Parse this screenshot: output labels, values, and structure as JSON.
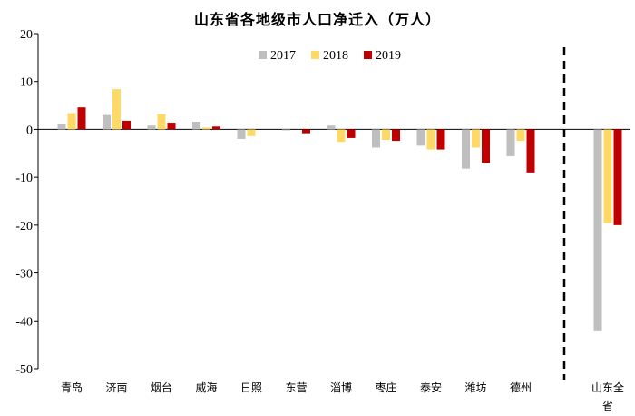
{
  "chart_data": {
    "type": "bar",
    "title": "山东省各地级市人口净迁入（万人）",
    "categories": [
      "青岛",
      "济南",
      "烟台",
      "威海",
      "日照",
      "东营",
      "淄博",
      "枣庄",
      "泰安",
      "潍坊",
      "德州"
    ],
    "series": [
      {
        "name": "2017",
        "color": "#BFBFBF",
        "values": [
          1.2,
          3.0,
          0.8,
          1.6,
          -2.0,
          -0.2,
          0.8,
          -3.8,
          -3.4,
          -8.2,
          -5.6
        ]
      },
      {
        "name": "2018",
        "color": "#FFD966",
        "values": [
          3.4,
          8.4,
          3.2,
          0.4,
          -1.4,
          0.0,
          -2.6,
          -2.2,
          -4.2,
          -3.8,
          -2.4
        ]
      },
      {
        "name": "2019",
        "color": "#C00000",
        "values": [
          4.6,
          1.8,
          1.4,
          0.6,
          0.0,
          -0.8,
          -1.8,
          -2.4,
          -4.2,
          -7.0,
          -9.0
        ]
      }
    ],
    "extra_group": {
      "label": "山东全省",
      "values": [
        -42.0,
        -19.6,
        -20.0
      ]
    },
    "ylim": [
      -50,
      20
    ],
    "yticks": [
      20,
      10,
      0,
      -10,
      -20,
      -30,
      -40,
      -50
    ],
    "legend_position": "top-center",
    "separator": "dashed vertical line before 山东全省",
    "grid": false
  }
}
